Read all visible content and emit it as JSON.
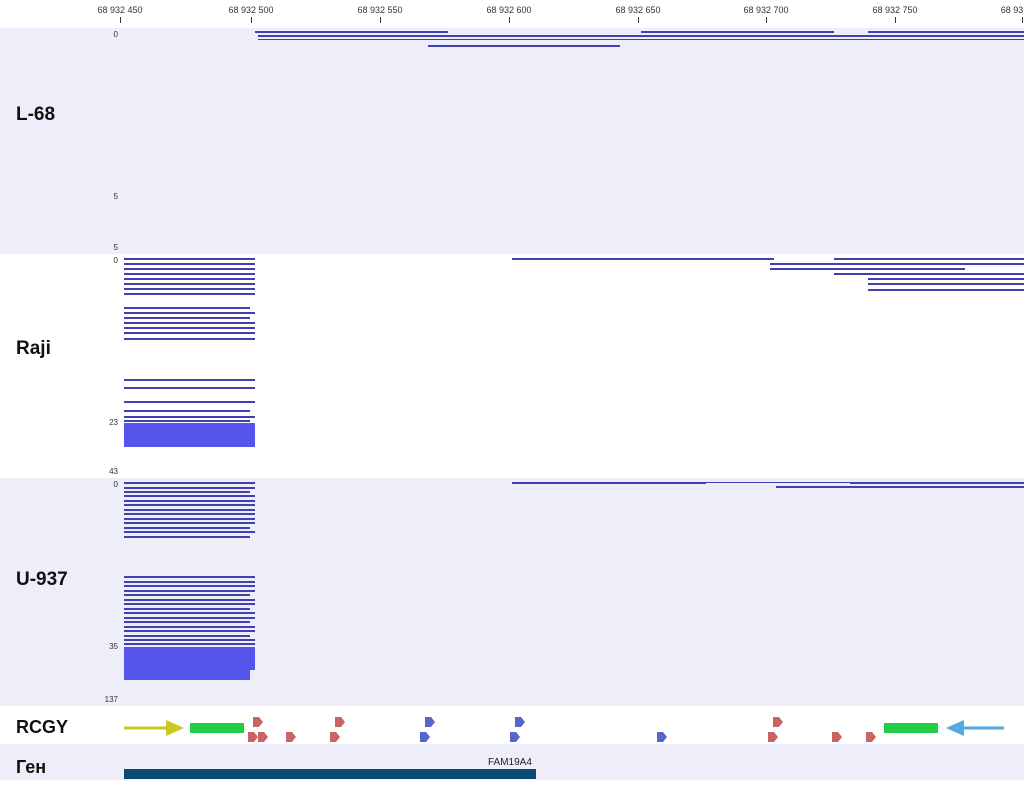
{
  "ruler": {
    "ticks": [
      {
        "label": "68 932 450",
        "x": 68932450
      },
      {
        "label": "68 932 500",
        "x": 68932500
      },
      {
        "label": "68 932 550",
        "x": 68932550
      },
      {
        "label": "68 932 600",
        "x": 68932600
      },
      {
        "label": "68 932 650",
        "x": 68932650
      },
      {
        "label": "68 932 700",
        "x": 68932700
      },
      {
        "label": "68 932 750",
        "x": 68932750
      },
      {
        "label": "68 93",
        "x": 68932800
      }
    ]
  },
  "tracks": [
    {
      "id": "l68",
      "label": "L-68",
      "scale_top": "0",
      "scale_mid": "5",
      "scale_bottom": "5"
    },
    {
      "id": "raji",
      "label": "Raji",
      "scale_top": "0",
      "scale_mid": "23",
      "scale_bottom": "43"
    },
    {
      "id": "u937",
      "label": "U-937",
      "scale_top": "0",
      "scale_mid": "35",
      "scale_bottom": "137"
    }
  ],
  "rcgy": {
    "label": "RCGY"
  },
  "gene": {
    "label": "Ген",
    "name": "FAM19A4"
  },
  "colors": {
    "track_bg_shaded": "#eeeefa",
    "read": "#4040b0",
    "read_dense": "#5555ee",
    "motif_red": "#c86464",
    "motif_blue": "#5566cc",
    "primer_green": "#22cc44",
    "arrow_yellow": "#c8c820",
    "arrow_cyan": "#55aadd",
    "gene_bar": "#0d4a73"
  }
}
